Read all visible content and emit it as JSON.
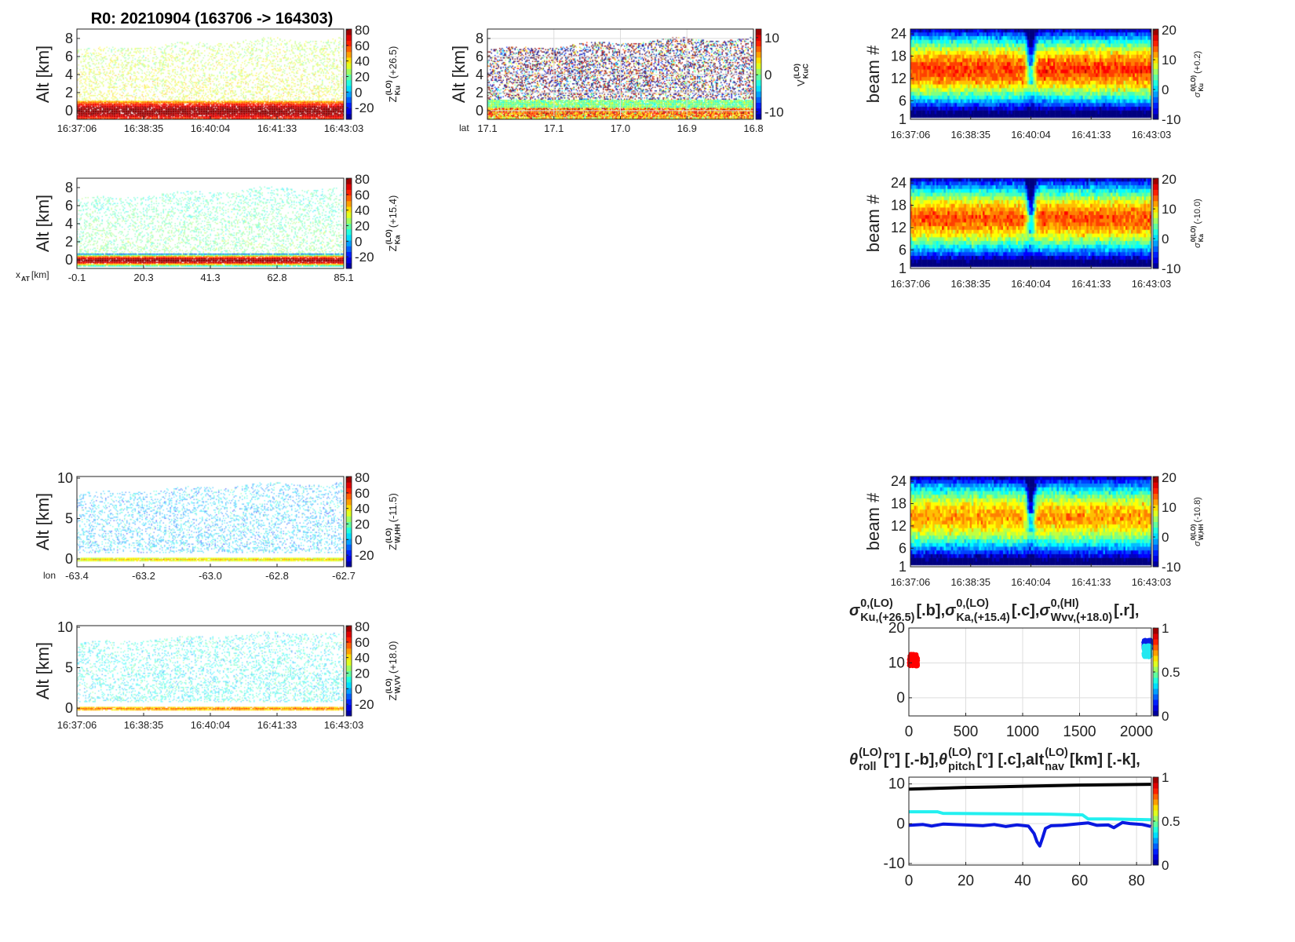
{
  "figure_title": "R0:  20210904 (163706 -> 164303)",
  "time_ticks": [
    "16:37:06",
    "16:38:35",
    "16:40:04",
    "16:41:33",
    "16:43:03"
  ],
  "chart_data": [
    {
      "id": "ku",
      "type": "heatmap",
      "ylabel": "Alt [km]",
      "yticks": [
        0,
        2,
        4,
        6,
        8
      ],
      "ylim": [
        -0.96,
        9.04
      ],
      "xticks": [
        "16:37:06",
        "16:38:35",
        "16:40:04",
        "16:41:33",
        "16:43:03"
      ],
      "xprefix": null,
      "clim": [
        -35,
        81
      ],
      "cticks": [
        80,
        60,
        40,
        20,
        0,
        -20
      ],
      "clabel": {
        "base": "Z",
        "sup": "(LO)",
        "sub": "Ku",
        "tail": " (+26.5)"
      },
      "cloud_top_km": [
        6.8,
        8.0
      ],
      "field": {
        "mean": 38,
        "spread": 7,
        "density": 0.32
      },
      "surface": {
        "peak": 80,
        "halfwidth_km": 0.75
      }
    },
    {
      "id": "ka",
      "type": "heatmap",
      "ylabel": "Alt [km]",
      "yticks": [
        0,
        2,
        4,
        6,
        8
      ],
      "ylim": [
        -0.96,
        9.04
      ],
      "xticks": [
        "-0.1",
        "20.3",
        "41.3",
        "62.8",
        "85.1"
      ],
      "xprefix": {
        "base": "x",
        "sub": "AT",
        "tail": " [km]"
      },
      "clim": [
        -35,
        81
      ],
      "cticks": [
        80,
        60,
        40,
        20,
        0,
        -20
      ],
      "clabel": {
        "base": "Z",
        "sup": "(LO)",
        "sub": "Ka",
        "tail": " (+15.4)"
      },
      "cloud_top_km": [
        6.8,
        8.0
      ],
      "field": {
        "mean": 24,
        "spread": 6,
        "density": 0.3
      },
      "surface": {
        "peak": 80,
        "halfwidth_km": 0.35
      }
    },
    {
      "id": "whh",
      "type": "heatmap",
      "ylabel": "Alt [km]",
      "yticks": [
        0,
        5,
        10
      ],
      "ylim": [
        -0.97,
        10.2
      ],
      "xticks": [
        "-63.4",
        "-63.2",
        "-63.0",
        "-62.8",
        "-62.7"
      ],
      "xprefix": {
        "base": "lon",
        "sub": "",
        "tail": ""
      },
      "clim": [
        -35,
        81
      ],
      "cticks": [
        80,
        60,
        40,
        20,
        0,
        -20
      ],
      "clabel": {
        "base": "Z",
        "sup": "(LO)",
        "sub": "W,HH",
        "tail": " (-11.5)"
      },
      "cloud_top_km": [
        8.1,
        9.4
      ],
      "field": {
        "mean": 2,
        "spread": 9,
        "density": 0.3
      },
      "surface": {
        "peak": 45,
        "halfwidth_km": 0.18
      }
    },
    {
      "id": "wvv",
      "type": "heatmap",
      "ylabel": "Alt [km]",
      "yticks": [
        0,
        5,
        10
      ],
      "ylim": [
        -0.97,
        10.2
      ],
      "xticks": [
        "16:37:06",
        "16:38:35",
        "16:40:04",
        "16:41:33",
        "16:43:03"
      ],
      "xprefix": null,
      "clim": [
        -35,
        81
      ],
      "cticks": [
        80,
        60,
        40,
        20,
        0,
        -20
      ],
      "clabel": {
        "base": "Z",
        "sup": "(LO)",
        "sub": "W,VV",
        "tail": " (+18.0)"
      },
      "cloud_top_km": [
        8.1,
        9.4
      ],
      "field": {
        "mean": 10,
        "spread": 7,
        "density": 0.3
      },
      "surface": {
        "peak": 55,
        "halfwidth_km": 0.18
      }
    },
    {
      "id": "dop",
      "type": "heatmap",
      "ylabel": "Alt [km]",
      "yticks": [
        0,
        2,
        4,
        6,
        8
      ],
      "ylim": [
        -0.96,
        9.04
      ],
      "grid": true,
      "xticks": [
        "17.1",
        "17.1",
        "17.0",
        "16.9",
        "16.8"
      ],
      "xprefix": {
        "base": "lat",
        "sub": "",
        "tail": ""
      },
      "clim": [
        -12,
        12.3
      ],
      "cticks": [
        10,
        0,
        -10
      ],
      "clabel": {
        "base": "V",
        "sup": "(LO)",
        "sub": "KuC",
        "tail": ""
      },
      "cloud_top_km": [
        6.8,
        8.0
      ],
      "field": {
        "mean": 0,
        "spread": 14,
        "density": 0.4
      },
      "surface": {
        "peak": 7,
        "halfwidth_km": 0.8
      }
    },
    {
      "id": "bku",
      "type": "beam_heatmap",
      "ylabel": "beam #",
      "yticks": [
        1,
        6,
        12,
        18,
        24
      ],
      "ylim": [
        1,
        25.3
      ],
      "xticks": [
        "16:37:06",
        "16:38:35",
        "16:40:04",
        "16:41:33",
        "16:43:03"
      ],
      "clim": [
        -10,
        20.3
      ],
      "cticks": [
        20,
        10,
        0,
        -10
      ],
      "clabel": {
        "base": "σ",
        "sup": "0(LO)",
        "sub": "Ku",
        "tail": " (+0.2)"
      },
      "beams": 24,
      "beam_profile": {
        "peak": 15,
        "edge": -9,
        "center_beam": 13.5,
        "dip_at_tick": "16:40:04"
      }
    },
    {
      "id": "bka",
      "type": "beam_heatmap",
      "ylabel": "beam #",
      "yticks": [
        1,
        6,
        12,
        18,
        24
      ],
      "ylim": [
        1,
        25.3
      ],
      "xticks": [
        "16:37:06",
        "16:38:35",
        "16:40:04",
        "16:41:33",
        "16:43:03"
      ],
      "clim": [
        -10,
        20.3
      ],
      "cticks": [
        20,
        10,
        0,
        -10
      ],
      "clabel": {
        "base": "σ",
        "sup": "0(LO)",
        "sub": "Ka",
        "tail": " (-10.0)"
      },
      "beams": 24,
      "beam_profile": {
        "peak": 14,
        "edge": -9,
        "center_beam": 13.5,
        "dip_at_tick": "16:40:04"
      }
    },
    {
      "id": "bw",
      "type": "beam_heatmap",
      "ylabel": "beam #",
      "yticks": [
        1,
        6,
        12,
        18,
        24
      ],
      "ylim": [
        1,
        25.3
      ],
      "xticks": [
        "16:37:06",
        "16:38:35",
        "16:40:04",
        "16:41:33",
        "16:43:03"
      ],
      "clim": [
        -10,
        20.3
      ],
      "cticks": [
        20,
        10,
        0,
        -10
      ],
      "clabel": {
        "base": "σ",
        "sup": "0(LO)",
        "sub": "W,HH",
        "tail": " (-10.8)"
      },
      "beams": 24,
      "beam_profile": {
        "peak": 12,
        "edge": -9,
        "center_beam": 13.5,
        "dip_at_tick": "16:40:04"
      }
    },
    {
      "id": "sig",
      "type": "scatter",
      "grid": true,
      "title": [
        {
          "base": "σ",
          "sup": "0,(LO)",
          "sub": "Ku,(+26.5)",
          "tail": " [.b],  "
        },
        {
          "base": "σ",
          "sup": "0,(LO)",
          "sub": "Ka,(+15.4)",
          "tail": " [.c],  "
        },
        {
          "base": "σ",
          "sup": "0,(HI)",
          "sub": "Wvv,(+18.0)",
          "tail": " [.r],"
        }
      ],
      "xlim": [
        0,
        2131
      ],
      "ylim": [
        -5.2,
        20
      ],
      "xticks": [
        0,
        500,
        1000,
        1500,
        2000
      ],
      "yticks": [
        0,
        10,
        20
      ],
      "clim": [
        0,
        1
      ],
      "cticks": [
        1,
        0.5,
        0
      ],
      "series": [
        {
          "name": "red cluster",
          "color": "#ff0000",
          "x": [
            0,
            80
          ],
          "y": [
            9,
            12.6
          ]
        },
        {
          "name": "blue cluster",
          "color": "#0a1fe6",
          "x": [
            2060,
            2130
          ],
          "y": [
            14,
            16.6
          ]
        },
        {
          "name": "cyan cluster",
          "color": "#22e8f0",
          "x": [
            2062,
            2122
          ],
          "y": [
            11.6,
            15
          ]
        }
      ]
    },
    {
      "id": "att",
      "type": "line",
      "grid": true,
      "title": [
        {
          "base": "θ",
          "sup": "(LO)",
          "sub": "roll",
          "tail": " [°] [.-b],  "
        },
        {
          "base": "θ",
          "sup": "(LO)",
          "sub": "pitch",
          "tail": " [°] [.c],  "
        },
        {
          "base": "alt",
          "sup": "(LO)",
          "sub": "nav",
          "tail": " [km] [.-k],"
        }
      ],
      "xlim": [
        0,
        85.2
      ],
      "ylim": [
        -10.4,
        11.7
      ],
      "xticks": [
        0,
        20,
        40,
        60,
        80
      ],
      "yticks": [
        -10,
        0,
        10
      ],
      "clim": [
        0,
        1
      ],
      "cticks": [
        1,
        0.5,
        0
      ],
      "series": [
        {
          "name": "alt_nav",
          "color": "#000000",
          "x": [
            0,
            20,
            40,
            60,
            85
          ],
          "y": [
            8.7,
            9.1,
            9.4,
            9.7,
            9.9
          ]
        },
        {
          "name": "pitch",
          "color": "#22f0f0",
          "x": [
            0,
            10,
            12,
            30,
            50,
            61,
            63,
            70,
            85
          ],
          "y": [
            3.0,
            3.0,
            2.6,
            2.5,
            2.4,
            2.2,
            1.2,
            1.2,
            1.0
          ]
        },
        {
          "name": "roll",
          "color": "#0a18e0",
          "x": [
            0,
            5,
            8,
            12,
            20,
            26,
            30,
            34,
            38,
            42,
            44,
            45,
            46,
            47,
            48,
            50,
            54,
            60,
            63,
            66,
            70,
            72,
            75,
            78,
            82,
            85
          ],
          "y": [
            -0.4,
            -0.2,
            -0.6,
            -0.1,
            -0.3,
            -0.5,
            -0.2,
            -0.7,
            -0.3,
            -0.6,
            -2.5,
            -4.5,
            -5.6,
            -3.5,
            -1.2,
            -0.5,
            -0.4,
            0.0,
            0.2,
            -0.4,
            -0.3,
            -1.0,
            0.3,
            0.0,
            -0.2,
            -0.7
          ]
        }
      ]
    }
  ]
}
